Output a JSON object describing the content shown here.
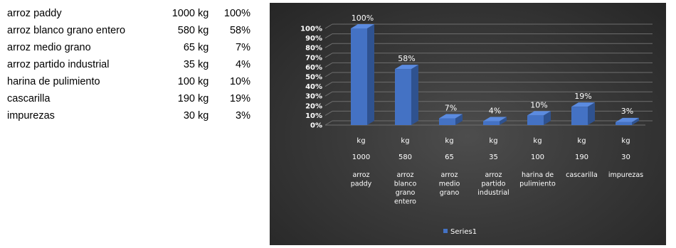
{
  "table": {
    "rows": [
      {
        "name": "arroz paddy",
        "amount": "1000",
        "unit": "kg",
        "pct": "100%"
      },
      {
        "name": "arroz blanco grano entero",
        "amount": "580",
        "unit": "kg",
        "pct": "58%"
      },
      {
        "name": "arroz medio grano",
        "amount": "65",
        "unit": "kg",
        "pct": "7%"
      },
      {
        "name": "arroz partido industrial",
        "amount": "35",
        "unit": "kg",
        "pct": "4%"
      },
      {
        "name": "harina de pulimiento",
        "amount": "100",
        "unit": "kg",
        "pct": "10%"
      },
      {
        "name": "cascarilla",
        "amount": "190",
        "unit": "kg",
        "pct": "19%"
      },
      {
        "name": "impurezas",
        "amount": "30",
        "unit": "kg",
        "pct": "3%"
      }
    ]
  },
  "chart_data": {
    "type": "bar",
    "three_d": true,
    "categories": [
      {
        "unit": "kg",
        "amount": "1000",
        "name_lines": [
          "arroz",
          "paddy"
        ]
      },
      {
        "unit": "kg",
        "amount": "580",
        "name_lines": [
          "arroz",
          "blanco",
          "grano",
          "entero"
        ]
      },
      {
        "unit": "kg",
        "amount": "65",
        "name_lines": [
          "arroz",
          "medio",
          "grano"
        ]
      },
      {
        "unit": "kg",
        "amount": "35",
        "name_lines": [
          "arroz",
          "partido",
          "industrial"
        ]
      },
      {
        "unit": "kg",
        "amount": "100",
        "name_lines": [
          "harina de",
          "pulimiento"
        ]
      },
      {
        "unit": "kg",
        "amount": "190",
        "name_lines": [
          "cascarilla"
        ]
      },
      {
        "unit": "kg",
        "amount": "30",
        "name_lines": [
          "impurezas"
        ]
      }
    ],
    "series": [
      {
        "name": "Series1",
        "values": [
          1.0,
          0.58,
          0.07,
          0.04,
          0.1,
          0.19,
          0.03
        ],
        "data_labels": [
          "100%",
          "58%",
          "7%",
          "4%",
          "10%",
          "19%",
          "3%"
        ]
      }
    ],
    "y_ticks": [
      "0%",
      "10%",
      "20%",
      "30%",
      "40%",
      "50%",
      "60%",
      "70%",
      "80%",
      "90%",
      "100%"
    ],
    "ylim": [
      0,
      1
    ],
    "grid": true,
    "legend": "bottom",
    "colors": {
      "bar_front": "#4472c4",
      "bar_side": "#2f528f",
      "bar_top": "#5b8be0",
      "background": "#3a3a3a",
      "text": "#ffffff",
      "gridline": "#6e6e6e"
    }
  }
}
